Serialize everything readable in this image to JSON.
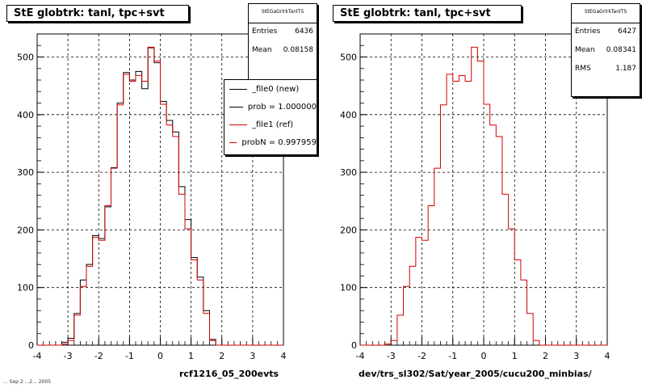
{
  "colors": {
    "new": "#000000",
    "ref": "#d40000",
    "grid": "#000000"
  },
  "stamp": "... Sep 2 ...2... 2005",
  "panels": [
    {
      "title": "StE globtrk: tanl, tpc+svt",
      "stats": {
        "name": "StEGaGrlrkTanlTS",
        "entries_label": "Entries",
        "entries": "6436",
        "mean_label": "Mean",
        "mean": "0.08158"
      },
      "legend": [
        {
          "label": "_file0 (new)",
          "color": "#000000"
        },
        {
          "label": "prob = 1.000000",
          "color": "#000000"
        },
        {
          "label": "_file1 (ref)",
          "color": "#d40000"
        },
        {
          "label": "probN = 0.997959",
          "color": "#d40000"
        }
      ],
      "xlabel": "rcf1216_05_200evts"
    },
    {
      "title": "StE globtrk: tanl, tpc+svt",
      "stats": {
        "name": "StEGaGrlrkTanlTS",
        "entries_label": "Entries",
        "entries": "6427",
        "mean_label": "Mean",
        "mean": "0.08341",
        "rms_label": "RMS",
        "rms": "1.187"
      },
      "xlabel": "dev/trs_sl302/Sat/year_2005/cucu200_minbias/"
    }
  ],
  "chart_data": [
    {
      "type": "histogram",
      "title": "StE globtrk: tanl, tpc+svt",
      "xlabel": "rcf1216_05_200evts",
      "xlim": [
        -4,
        4
      ],
      "ylim": [
        0,
        540
      ],
      "xticks": [
        -4,
        -3,
        -2,
        -1,
        0,
        1,
        2,
        3,
        4
      ],
      "yticks": [
        0,
        100,
        200,
        300,
        400,
        500
      ],
      "grid": true,
      "bin_edges": [
        -3.2,
        -3.0,
        -2.8,
        -2.6,
        -2.4,
        -2.2,
        -2.0,
        -1.8,
        -1.6,
        -1.4,
        -1.2,
        -1.0,
        -0.8,
        -0.6,
        -0.4,
        -0.2,
        0.0,
        0.2,
        0.4,
        0.6,
        0.8,
        1.0,
        1.2,
        1.4,
        1.6,
        1.8,
        2.0,
        2.2,
        2.4,
        2.6,
        2.8,
        3.0,
        3.2
      ],
      "series": [
        {
          "name": "_file0 (new)",
          "color": "#000000",
          "values": [
            5,
            12,
            55,
            113,
            140,
            190,
            185,
            240,
            308,
            420,
            473,
            460,
            475,
            445,
            516,
            490,
            423,
            390,
            370,
            275,
            218,
            152,
            118,
            60,
            10,
            0,
            0,
            0,
            0,
            0,
            0,
            0
          ]
        },
        {
          "name": "_file1 (ref)",
          "color": "#d40000",
          "values": [
            2,
            8,
            52,
            102,
            137,
            187,
            182,
            242,
            307,
            417,
            470,
            458,
            468,
            458,
            517,
            493,
            418,
            382,
            362,
            262,
            202,
            148,
            113,
            55,
            8,
            0,
            0,
            0,
            0,
            0,
            0,
            0
          ]
        }
      ]
    },
    {
      "type": "histogram",
      "title": "StE globtrk: tanl, tpc+svt",
      "xlabel": "dev/trs_sl302/Sat/year_2005/cucu200_minbias/",
      "xlim": [
        -4,
        4
      ],
      "ylim": [
        0,
        540
      ],
      "xticks": [
        -4,
        -3,
        -2,
        -1,
        0,
        1,
        2,
        3,
        4
      ],
      "yticks": [
        0,
        100,
        200,
        300,
        400,
        500
      ],
      "grid": true,
      "bin_edges": [
        -3.2,
        -3.0,
        -2.8,
        -2.6,
        -2.4,
        -2.2,
        -2.0,
        -1.8,
        -1.6,
        -1.4,
        -1.2,
        -1.0,
        -0.8,
        -0.6,
        -0.4,
        -0.2,
        0.0,
        0.2,
        0.4,
        0.6,
        0.8,
        1.0,
        1.2,
        1.4,
        1.6,
        1.8,
        2.0,
        2.2,
        2.4,
        2.6,
        2.8,
        3.0,
        3.2
      ],
      "series": [
        {
          "name": "_file1 (ref)",
          "color": "#d40000",
          "values": [
            2,
            8,
            52,
            102,
            137,
            187,
            182,
            242,
            307,
            417,
            470,
            458,
            468,
            458,
            517,
            493,
            418,
            382,
            362,
            262,
            202,
            148,
            113,
            55,
            8,
            0,
            0,
            0,
            0,
            0,
            0,
            0
          ]
        }
      ]
    }
  ]
}
